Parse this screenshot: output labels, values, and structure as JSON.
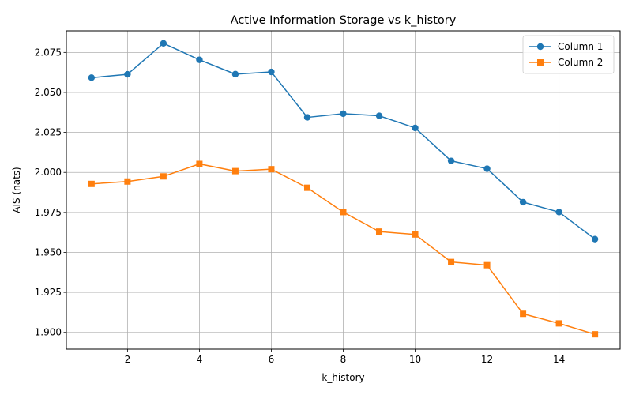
{
  "chart_data": {
    "type": "line",
    "title": "Active Information Storage vs k_history",
    "xlabel": "k_history",
    "ylabel": "AIS (nats)",
    "x": [
      1,
      2,
      3,
      4,
      5,
      6,
      7,
      8,
      9,
      10,
      11,
      12,
      13,
      14,
      15
    ],
    "xlim": [
      0.3,
      15.7
    ],
    "ylim": [
      1.8895,
      2.0885
    ],
    "xticks": [
      2,
      4,
      6,
      8,
      10,
      12,
      14
    ],
    "yticks": [
      1.9,
      1.925,
      1.95,
      1.975,
      2.0,
      2.025,
      2.05,
      2.075
    ],
    "grid": true,
    "legend_position": "top-right",
    "series": [
      {
        "name": "Column 1",
        "color": "#1f77b4",
        "marker": "circle",
        "values": [
          2.0592,
          2.0613,
          2.0807,
          2.0704,
          2.0614,
          2.0628,
          2.0344,
          2.0367,
          2.0354,
          2.0278,
          2.0072,
          2.0023,
          1.9814,
          1.9752,
          1.9583
        ]
      },
      {
        "name": "Column 2",
        "color": "#ff7f0e",
        "marker": "square",
        "values": [
          1.9928,
          1.9943,
          1.9975,
          2.0053,
          2.0008,
          2.002,
          1.9904,
          1.9752,
          1.963,
          1.9612,
          1.944,
          1.942,
          1.9116,
          1.9056,
          1.8988
        ]
      }
    ]
  }
}
